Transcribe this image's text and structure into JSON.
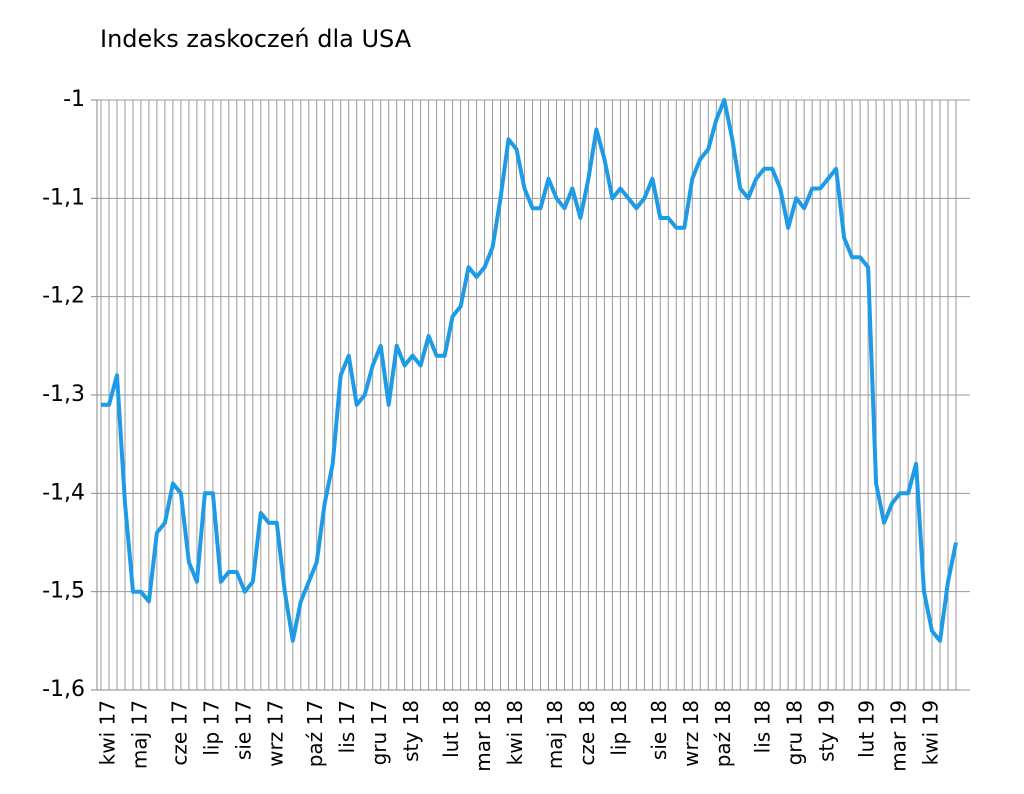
{
  "chart_data": {
    "type": "line",
    "title": "Indeks zaskoczeń dla USA",
    "categories": [
      null,
      "kwi 17",
      null,
      null,
      null,
      "maj 17",
      null,
      null,
      null,
      null,
      "cze 17",
      null,
      null,
      null,
      "lip 17",
      null,
      null,
      null,
      "sie 17",
      null,
      null,
      null,
      "wrz 17",
      null,
      null,
      null,
      null,
      "paź 17",
      null,
      null,
      null,
      "lis 17",
      null,
      null,
      null,
      "gru 17",
      null,
      null,
      null,
      "sty 18",
      null,
      null,
      null,
      null,
      "lut 18",
      null,
      null,
      null,
      "mar 18",
      null,
      null,
      null,
      "kwi 18",
      null,
      null,
      null,
      null,
      "maj 18",
      null,
      null,
      null,
      "cze 18",
      null,
      null,
      null,
      "lip 18",
      null,
      null,
      null,
      null,
      "sie 18",
      null,
      null,
      null,
      "wrz 18",
      null,
      null,
      null,
      "paź 18",
      null,
      null,
      null,
      null,
      "lis 18",
      null,
      null,
      null,
      "gru 18",
      null,
      null,
      null,
      "sty 19",
      null,
      null,
      null,
      null,
      "lut 19",
      null,
      null,
      null,
      "mar 19",
      null,
      null,
      null,
      "kwi 19",
      null,
      null,
      null
    ],
    "values": [
      -1.31,
      -1.31,
      -1.28,
      -1.41,
      -1.5,
      -1.5,
      -1.51,
      -1.44,
      -1.43,
      -1.39,
      -1.4,
      -1.47,
      -1.49,
      -1.4,
      -1.4,
      -1.49,
      -1.48,
      -1.48,
      -1.5,
      -1.49,
      -1.42,
      -1.43,
      -1.43,
      -1.5,
      -1.55,
      -1.51,
      -1.49,
      -1.47,
      -1.41,
      -1.37,
      -1.28,
      -1.26,
      -1.31,
      -1.3,
      -1.27,
      -1.25,
      -1.31,
      -1.25,
      -1.27,
      -1.26,
      -1.27,
      -1.24,
      -1.26,
      -1.26,
      -1.22,
      -1.21,
      -1.17,
      -1.18,
      -1.17,
      -1.15,
      -1.1,
      -1.04,
      -1.05,
      -1.09,
      -1.11,
      -1.11,
      -1.08,
      -1.1,
      -1.11,
      -1.09,
      -1.12,
      -1.08,
      -1.03,
      -1.06,
      -1.1,
      -1.09,
      -1.1,
      -1.11,
      -1.1,
      -1.08,
      -1.12,
      -1.12,
      -1.13,
      -1.13,
      -1.08,
      -1.06,
      -1.05,
      -1.02,
      -1.0,
      -1.04,
      -1.09,
      -1.1,
      -1.08,
      -1.07,
      -1.07,
      -1.09,
      -1.13,
      -1.1,
      -1.11,
      -1.09,
      -1.09,
      -1.08,
      -1.07,
      -1.14,
      -1.16,
      -1.16,
      -1.17,
      -1.39,
      -1.43,
      -1.41,
      -1.4,
      -1.4,
      -1.37,
      -1.5,
      -1.54,
      -1.55,
      -1.49,
      -1.45
    ],
    "color": "#1e9be6",
    "ylim": [
      -1.6,
      -1
    ],
    "yticks": [
      {
        "value": -1.6,
        "label": "-1,6"
      },
      {
        "value": -1.5,
        "label": "-1,5"
      },
      {
        "value": -1.4,
        "label": "-1,4"
      },
      {
        "value": -1.3,
        "label": "-1,3"
      },
      {
        "value": -1.2,
        "label": "-1,2"
      },
      {
        "value": -1.1,
        "label": "-1,1"
      },
      -1
    ],
    "grid": true
  }
}
